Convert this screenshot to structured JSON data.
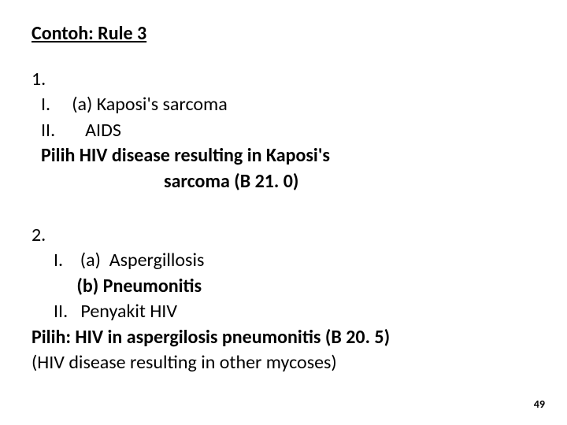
{
  "title": "Contoh: Rule 3",
  "examples": [
    {
      "number": "1.",
      "lines": [
        {
          "text": "I.     (a) Kaposi's sarcoma",
          "class": "indent-1"
        },
        {
          "text": "II.       AIDS",
          "class": "indent-1"
        },
        {
          "text": "Pilih HIV disease resulting in Kaposi's",
          "class": "indent-1 bold"
        },
        {
          "text": "sarcoma (B 21. 0)",
          "class": "indent-sarcoma bold"
        }
      ]
    },
    {
      "number": "2.",
      "lines": [
        {
          "text": "I.    (a)  Aspergillosis",
          "class": "indent-3"
        },
        {
          "text": " (b) Pneumonitis",
          "class": "indent-2 bold"
        },
        {
          "text": "II.   Penyakit HIV",
          "class": "indent-3"
        },
        {
          "text": "Pilih: HIV in aspergilosis pneumonitis (B 20. 5)",
          "class": "bold"
        },
        {
          "text": "(HIV disease resulting in other mycoses)",
          "class": ""
        }
      ]
    }
  ],
  "pageNumber": "49",
  "styles": {
    "background_color": "#ffffff",
    "text_color": "#000000",
    "title_fontsize": 24,
    "body_fontsize": 24,
    "pagenum_fontsize": 14,
    "font_family": "Calibri",
    "line_height": 1.35
  }
}
